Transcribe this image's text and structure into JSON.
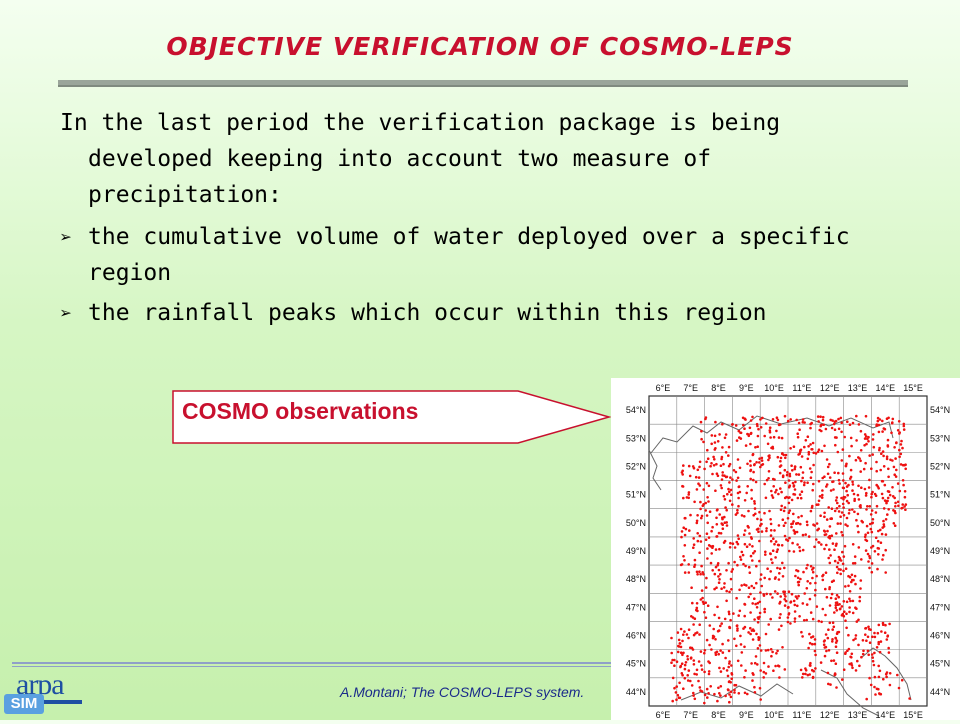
{
  "slide": {
    "title": "OBJECTIVE VERIFICATION OF COSMO-LEPS",
    "intro": "In the last period the verification package is being developed keeping into account two measure of precipitation:",
    "bullets": [
      "the cumulative volume of water deployed over a specific region",
      "the rainfall peaks which occur within this region"
    ],
    "callout": "COSMO observations",
    "footer": "A.Montani; The COSMO-LEPS system."
  },
  "logo": {
    "text": "arpa",
    "badge": "SIM"
  },
  "map": {
    "lon_labels": [
      "6°E",
      "7°E",
      "8°E",
      "9°E",
      "10°E",
      "11°E",
      "12°E",
      "13°E",
      "14°E",
      "15°E"
    ],
    "lat_labels": [
      "54°N",
      "53°N",
      "52°N",
      "51°N",
      "50°N",
      "49°N",
      "48°N",
      "47°N",
      "46°N",
      "45°N",
      "44°N"
    ],
    "dot_color": "#ee1111"
  },
  "colors": {
    "title": "#c8102e",
    "footer": "#1a2a8a"
  }
}
